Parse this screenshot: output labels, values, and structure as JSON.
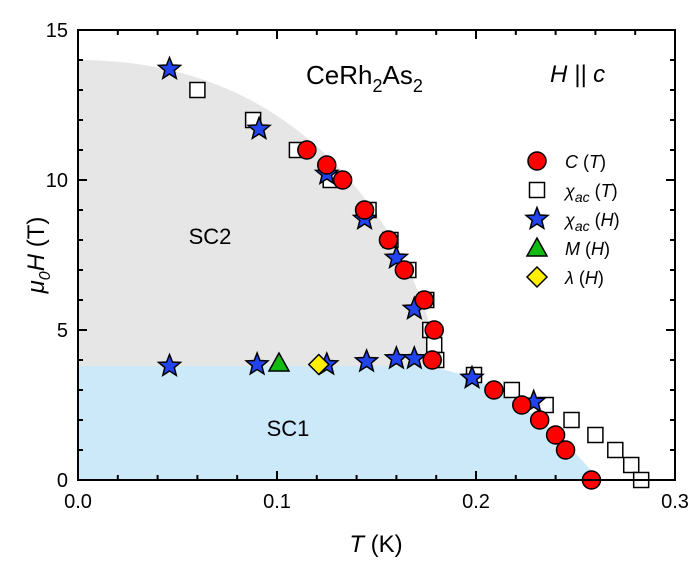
{
  "chart_data": {
    "type": "scatter",
    "title": "",
    "xlabel": {
      "italic": "T",
      "rest": " (K)"
    },
    "ylabel": {
      "base": "μ",
      "sub": "0",
      "italic": "H",
      "rest": " (T)"
    },
    "xlim": [
      0,
      0.3
    ],
    "ylim": [
      0,
      15
    ],
    "xticks": [
      "0.0",
      "0.1",
      "0.2",
      "0.3"
    ],
    "xtick_values": [
      0,
      0.1,
      0.2,
      0.3
    ],
    "yticks": [
      "0",
      "5",
      "10",
      "15"
    ],
    "ytick_values": [
      0,
      5,
      10,
      15
    ],
    "grid": false,
    "legend_position": "right",
    "annotations": {
      "compound": {
        "a": "CeRh",
        "s1": "2",
        "b": "As",
        "s2": "2"
      },
      "field": "H || c",
      "sc2": "SC2",
      "sc1": "SC1"
    },
    "regions": {
      "sc2_color": "#e6e6e6",
      "sc1_color": "#cce9fa"
    },
    "series": [
      {
        "name": "C (T)",
        "label": {
          "sym": "C",
          "sub": "",
          "arg": "T"
        },
        "marker": "circle",
        "color": "#ff0000",
        "points": [
          [
            0.115,
            11
          ],
          [
            0.125,
            10.5
          ],
          [
            0.133,
            10
          ],
          [
            0.144,
            9
          ],
          [
            0.156,
            8
          ],
          [
            0.164,
            7
          ],
          [
            0.174,
            6
          ],
          [
            0.179,
            5
          ],
          [
            0.178,
            4
          ],
          [
            0.209,
            3
          ],
          [
            0.223,
            2.5
          ],
          [
            0.232,
            2
          ],
          [
            0.24,
            1.5
          ],
          [
            0.245,
            1
          ],
          [
            0.258,
            0
          ]
        ]
      },
      {
        "name": "χac (T)",
        "label": {
          "sym": "χ",
          "sub": "ac",
          "arg": "T"
        },
        "marker": "square",
        "color": "#ffffff",
        "points": [
          [
            0.06,
            13
          ],
          [
            0.088,
            12
          ],
          [
            0.11,
            11
          ],
          [
            0.127,
            10
          ],
          [
            0.146,
            9
          ],
          [
            0.157,
            8
          ],
          [
            0.166,
            7
          ],
          [
            0.175,
            6
          ],
          [
            0.177,
            5
          ],
          [
            0.179,
            4.5
          ],
          [
            0.18,
            4
          ],
          [
            0.199,
            3.5
          ],
          [
            0.218,
            3
          ],
          [
            0.235,
            2.5
          ],
          [
            0.248,
            2
          ],
          [
            0.26,
            1.5
          ],
          [
            0.27,
            1
          ],
          [
            0.278,
            0.5
          ],
          [
            0.283,
            0
          ]
        ]
      },
      {
        "name": "χac (H)",
        "label": {
          "sym": "χ",
          "sub": "ac",
          "arg": "H"
        },
        "marker": "star",
        "color": "#2244ee",
        "points": [
          [
            0.046,
            13.7
          ],
          [
            0.091,
            11.7
          ],
          [
            0.125,
            10.2
          ],
          [
            0.144,
            8.7
          ],
          [
            0.16,
            7.4
          ],
          [
            0.169,
            5.7
          ],
          [
            0.198,
            3.4
          ],
          [
            0.229,
            2.6
          ],
          [
            0.046,
            3.8
          ],
          [
            0.09,
            3.85
          ],
          [
            0.125,
            3.85
          ],
          [
            0.145,
            3.95
          ],
          [
            0.16,
            4.05
          ],
          [
            0.169,
            4.05
          ]
        ]
      },
      {
        "name": "M (H)",
        "label": {
          "sym": "M",
          "sub": "",
          "arg": "H"
        },
        "marker": "triangle",
        "color": "#11bb11",
        "points": [
          [
            0.101,
            3.9
          ]
        ]
      },
      {
        "name": "λ (H)",
        "label": {
          "sym": "λ",
          "sub": "",
          "arg": "H"
        },
        "marker": "diamond",
        "color": "#ffee00",
        "points": [
          [
            0.121,
            3.85
          ]
        ]
      }
    ]
  }
}
